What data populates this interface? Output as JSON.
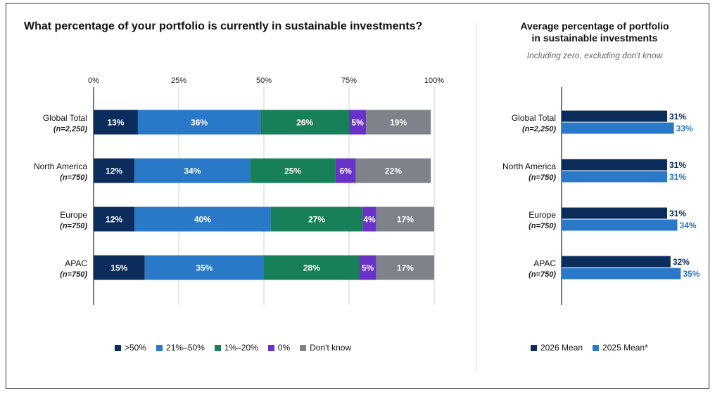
{
  "left_chart": {
    "title": "What percentage of your portfolio is currently in sustainable investments?",
    "ticks": [
      "0%",
      "25%",
      "50%",
      "75%",
      "100%"
    ]
  },
  "right_chart": {
    "title_line1": "Average percentage of portfolio",
    "title_line2": "in sustainable investments",
    "subtitle": "Including zero, excluding don't know"
  },
  "legend_left": [
    {
      "label": ">50%",
      "color": "#0c2d5c"
    },
    {
      "label": "21%–50%",
      "color": "#2a78c8"
    },
    {
      "label": "1%–20%",
      "color": "#178058"
    },
    {
      "label": "0%",
      "color": "#6b32c8"
    },
    {
      "label": "Don't know",
      "color": "#7e838b"
    }
  ],
  "legend_right": [
    {
      "label": "2026 Mean",
      "color": "#0c2d5c"
    },
    {
      "label": "2025 Mean*",
      "color": "#2a78c8"
    }
  ],
  "chart_data": [
    {
      "type": "bar",
      "orientation": "horizontal",
      "stacked": true,
      "title": "What percentage of your portfolio is currently in sustainable investments?",
      "categories": [
        "Global Total",
        "North America",
        "Europe",
        "APAC"
      ],
      "category_notes": [
        "(n=2,250)",
        "(n=750)",
        "(n=750)",
        "(n=750)"
      ],
      "xlim": [
        0,
        100
      ],
      "grid": true,
      "legend_position": "bottom",
      "series": [
        {
          "name": ">50%",
          "color": "#0c2d5c",
          "values": [
            13,
            12,
            12,
            15
          ]
        },
        {
          "name": "21%–50%",
          "color": "#2a78c8",
          "values": [
            36,
            34,
            40,
            35
          ]
        },
        {
          "name": "1%–20%",
          "color": "#178058",
          "values": [
            26,
            25,
            27,
            28
          ]
        },
        {
          "name": "0%",
          "color": "#6b32c8",
          "values": [
            5,
            6,
            4,
            5
          ]
        },
        {
          "name": "Don't know",
          "color": "#7e838b",
          "values": [
            19,
            22,
            17,
            17
          ]
        }
      ]
    },
    {
      "type": "bar",
      "orientation": "horizontal",
      "stacked": false,
      "title": "Average percentage of portfolio in sustainable investments",
      "subtitle": "Including zero, excluding don't know",
      "categories": [
        "Global Total",
        "North America",
        "Europe",
        "APAC"
      ],
      "category_notes": [
        "(n=2,250)",
        "(n=750)",
        "(n=750)",
        "(n=750)"
      ],
      "legend_position": "bottom",
      "series": [
        {
          "name": "2026 Mean",
          "color": "#0c2d5c",
          "values": [
            31,
            31,
            31,
            32
          ]
        },
        {
          "name": "2025 Mean*",
          "color": "#2a78c8",
          "values": [
            33,
            31,
            34,
            35
          ]
        }
      ]
    }
  ]
}
